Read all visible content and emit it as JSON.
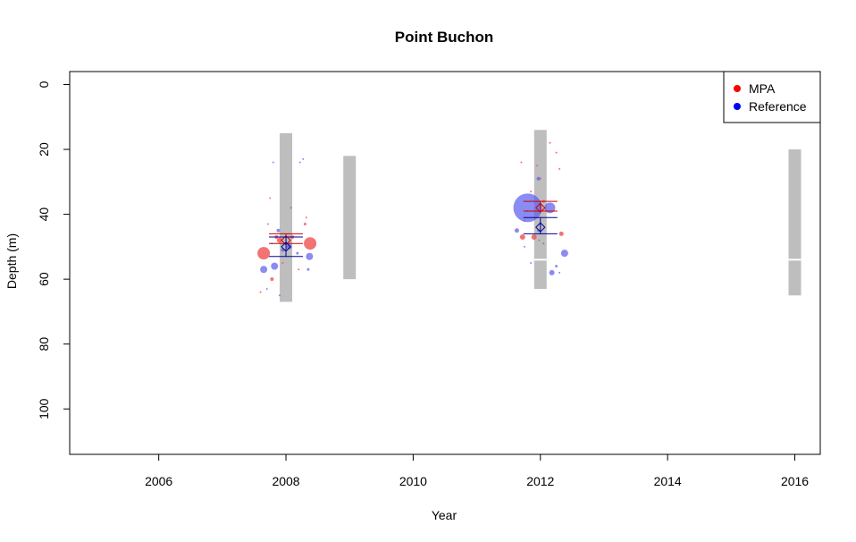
{
  "chart_data": {
    "type": "scatter",
    "title": "Point Buchon",
    "xlabel": "Year",
    "ylabel": "Depth (m)",
    "xlim": [
      2004.6,
      2016.4
    ],
    "ylim": [
      114,
      -4
    ],
    "y_reversed": true,
    "xticks": [
      2006,
      2008,
      2010,
      2012,
      2014,
      2016
    ],
    "yticks": [
      0,
      20,
      40,
      60,
      80,
      100
    ],
    "legend": {
      "position": "top-right",
      "entries": [
        {
          "label": "MPA",
          "color": "#ff0000"
        },
        {
          "label": "Reference",
          "color": "#0000ff"
        }
      ]
    },
    "colors": {
      "mpa": "#ff0000",
      "reference": "#0000ff",
      "mpa_point": "#f05a5a",
      "reference_point": "#5a5af0",
      "depth_range_bar": "#bebebe",
      "mpa_errorbar": "#cc0000",
      "reference_errorbar": "#000099"
    },
    "depth_ranges": [
      {
        "year": 2008,
        "min": 15,
        "max": 67,
        "breaks": []
      },
      {
        "year": 2009,
        "min": 22,
        "max": 60,
        "breaks": []
      },
      {
        "year": 2012,
        "min": 14,
        "max": 63,
        "breaks": [
          54
        ]
      },
      {
        "year": 2016,
        "min": 20,
        "max": 65,
        "breaks": [
          54
        ]
      }
    ],
    "means": [
      {
        "series": "MPA",
        "year": 2008,
        "mean": 48,
        "low": 46,
        "high": 49
      },
      {
        "series": "Reference",
        "year": 2008,
        "mean": 50,
        "low": 47,
        "high": 53
      },
      {
        "series": "MPA",
        "year": 2012,
        "mean": 38,
        "low": 36,
        "high": 39
      },
      {
        "series": "Reference",
        "year": 2012,
        "mean": 44,
        "low": 41,
        "high": 46
      }
    ],
    "series": [
      {
        "name": "MPA",
        "points": [
          {
            "year": 2007.65,
            "depth": 52,
            "size": 7
          },
          {
            "year": 2008.38,
            "depth": 49,
            "size": 7
          },
          {
            "year": 2007.85,
            "depth": 47,
            "size": 2
          },
          {
            "year": 2007.9,
            "depth": 48,
            "size": 3
          },
          {
            "year": 2008.1,
            "depth": 47,
            "size": 2
          },
          {
            "year": 2008.3,
            "depth": 43,
            "size": 1.5
          },
          {
            "year": 2008.32,
            "depth": 41,
            "size": 1
          },
          {
            "year": 2007.78,
            "depth": 60,
            "size": 2
          },
          {
            "year": 2007.72,
            "depth": 43,
            "size": 1
          },
          {
            "year": 2007.75,
            "depth": 35,
            "size": 1
          },
          {
            "year": 2007.6,
            "depth": 64,
            "size": 1
          },
          {
            "year": 2007.95,
            "depth": 55,
            "size": 1
          },
          {
            "year": 2008.2,
            "depth": 57,
            "size": 1
          },
          {
            "year": 2011.72,
            "depth": 47,
            "size": 3
          },
          {
            "year": 2011.9,
            "depth": 47,
            "size": 3
          },
          {
            "year": 2012.33,
            "depth": 46,
            "size": 2.5
          },
          {
            "year": 2011.75,
            "depth": 42,
            "size": 1
          },
          {
            "year": 2011.7,
            "depth": 24,
            "size": 1
          },
          {
            "year": 2011.95,
            "depth": 25,
            "size": 1
          },
          {
            "year": 2012.15,
            "depth": 18,
            "size": 1
          },
          {
            "year": 2012.25,
            "depth": 21,
            "size": 1
          },
          {
            "year": 2012.3,
            "depth": 26,
            "size": 1
          },
          {
            "year": 2011.85,
            "depth": 33,
            "size": 1
          },
          {
            "year": 2012.05,
            "depth": 36,
            "size": 1.5
          },
          {
            "year": 2011.98,
            "depth": 48,
            "size": 1
          },
          {
            "year": 2012.0,
            "depth": 29,
            "size": 1
          },
          {
            "year": 2011.8,
            "depth": 39,
            "size": 1
          }
        ]
      },
      {
        "name": "Reference",
        "points": [
          {
            "year": 2007.65,
            "depth": 57,
            "size": 4
          },
          {
            "year": 2007.82,
            "depth": 56,
            "size": 4
          },
          {
            "year": 2008.37,
            "depth": 53,
            "size": 4
          },
          {
            "year": 2008.05,
            "depth": 50,
            "size": 3
          },
          {
            "year": 2007.95,
            "depth": 51,
            "size": 2
          },
          {
            "year": 2007.88,
            "depth": 45,
            "size": 2
          },
          {
            "year": 2008.18,
            "depth": 52,
            "size": 1.5
          },
          {
            "year": 2007.78,
            "depth": 49,
            "size": 1
          },
          {
            "year": 2007.8,
            "depth": 24,
            "size": 1
          },
          {
            "year": 2008.22,
            "depth": 24,
            "size": 1
          },
          {
            "year": 2008.27,
            "depth": 23,
            "size": 1
          },
          {
            "year": 2008.08,
            "depth": 38,
            "size": 1
          },
          {
            "year": 2008.35,
            "depth": 57,
            "size": 1.5
          },
          {
            "year": 2007.7,
            "depth": 63,
            "size": 1
          },
          {
            "year": 2007.9,
            "depth": 65,
            "size": 1
          },
          {
            "year": 2011.8,
            "depth": 38,
            "size": 16
          },
          {
            "year": 2012.15,
            "depth": 38,
            "size": 6
          },
          {
            "year": 2011.63,
            "depth": 45,
            "size": 2.5
          },
          {
            "year": 2011.97,
            "depth": 29,
            "size": 2
          },
          {
            "year": 2012.18,
            "depth": 58,
            "size": 3
          },
          {
            "year": 2012.38,
            "depth": 52,
            "size": 4
          },
          {
            "year": 2012.25,
            "depth": 56,
            "size": 1.5
          },
          {
            "year": 2011.97,
            "depth": 45,
            "size": 1.5
          },
          {
            "year": 2012.05,
            "depth": 49,
            "size": 1
          },
          {
            "year": 2011.85,
            "depth": 55,
            "size": 1
          },
          {
            "year": 2012.3,
            "depth": 58,
            "size": 1
          },
          {
            "year": 2011.75,
            "depth": 50,
            "size": 1
          }
        ]
      }
    ]
  }
}
